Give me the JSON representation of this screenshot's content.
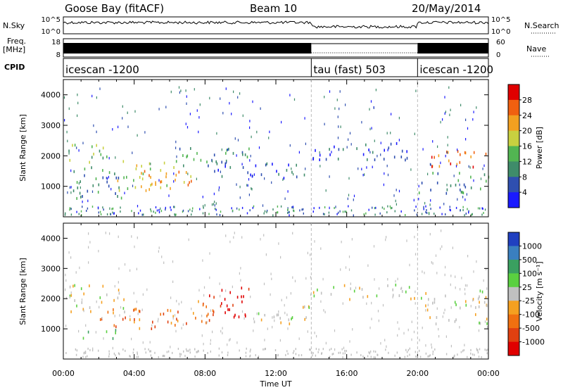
{
  "header": {
    "station": "Goose Bay (fitACF)",
    "beam": "Beam 10",
    "date": "20/May/2014"
  },
  "top_panels": {
    "nsky_label": "N.Sky",
    "nsky_ticks": [
      "10^5",
      "10^0"
    ],
    "nsearch_label": "N.Search",
    "nsearch_ticks": [
      "10^5",
      "10^0"
    ],
    "freq_label": "Freq.",
    "freq_unit": "[MHz]",
    "freq_ticks": [
      "18",
      "8"
    ],
    "nave_label": "Nave",
    "nave_ticks": [
      "60",
      "0"
    ],
    "cpid_label": "CPID",
    "cpid_segments": [
      {
        "name": "icescan -1200",
        "start": 0,
        "end": 14
      },
      {
        "name": "tau (fast) 503",
        "start": 14,
        "end": 20
      },
      {
        "name": "icescan -1200",
        "start": 20,
        "end": 24
      }
    ]
  },
  "chart_data": [
    {
      "type": "heatmap",
      "panel": "power",
      "ylabel": "Slant Range [km]",
      "xlabel": "Time UT",
      "xlim": [
        0,
        24
      ],
      "ylim": [
        0,
        4500
      ],
      "x_ticks": [
        "00:00",
        "04:00",
        "08:00",
        "12:00",
        "16:00",
        "20:00",
        "00:00"
      ],
      "y_ticks": [
        1000,
        2000,
        3000,
        4000
      ],
      "colorbar": {
        "label": "Power [dB]",
        "ticks": [
          "4",
          "8",
          "12",
          "16",
          "20",
          "24",
          "28"
        ],
        "colors": [
          "#1a1aff",
          "#2f4fb0",
          "#3f8c6a",
          "#52b552",
          "#c8d040",
          "#f2a020",
          "#f06010",
          "#e00000"
        ]
      },
      "echo_regions": [
        {
          "t0": 0.2,
          "t1": 3.0,
          "r0": 1800,
          "r1": 2400,
          "level": 3
        },
        {
          "t0": 0.5,
          "t1": 3.5,
          "r0": 600,
          "r1": 1700,
          "level": 2
        },
        {
          "t0": 2.5,
          "t1": 6.5,
          "r0": 900,
          "r1": 1900,
          "level": 4
        },
        {
          "t0": 4.5,
          "t1": 7.5,
          "r0": 1000,
          "r1": 1600,
          "level": 5
        },
        {
          "t0": 6.5,
          "t1": 10.5,
          "r0": 1500,
          "r1": 2300,
          "level": 2
        },
        {
          "t0": 8.5,
          "t1": 14.0,
          "r0": 1300,
          "r1": 1800,
          "level": 1
        },
        {
          "t0": 14.0,
          "t1": 20.0,
          "r0": 1900,
          "r1": 2500,
          "level": 1
        },
        {
          "t0": 20.0,
          "t1": 24.0,
          "r0": 1600,
          "r1": 2200,
          "level": 6
        },
        {
          "t0": 20.0,
          "t1": 24.0,
          "r0": 800,
          "r1": 1500,
          "level": 2
        }
      ]
    },
    {
      "type": "heatmap",
      "panel": "velocity",
      "ylabel": "Slant Range [km]",
      "xlabel": "Time UT",
      "xlim": [
        0,
        24
      ],
      "ylim": [
        0,
        4500
      ],
      "x_ticks": [
        "00:00",
        "04:00",
        "08:00",
        "12:00",
        "16:00",
        "20:00",
        "00:00"
      ],
      "y_ticks": [
        1000,
        2000,
        3000,
        4000
      ],
      "colorbar": {
        "label": "Velocity [m s⁻¹]",
        "ticks": [
          "1000",
          "500",
          "100",
          "25",
          "-25",
          "-100",
          "-500",
          "-1000"
        ],
        "colors": [
          "#2040c0",
          "#3a7fbf",
          "#3aa060",
          "#5ad040",
          "#c0c0c0",
          "#f5a020",
          "#f07010",
          "#e04010",
          "#e00000"
        ]
      },
      "echo_regions": [
        {
          "t0": 0.2,
          "t1": 3.5,
          "r0": 1600,
          "r1": 2500,
          "level": 4
        },
        {
          "t0": 0.8,
          "t1": 3.0,
          "r0": 700,
          "r1": 1000,
          "level": 3
        },
        {
          "t0": 1.5,
          "t1": 6.5,
          "r0": 1000,
          "r1": 1700,
          "level": 6
        },
        {
          "t0": 5.5,
          "t1": 8.5,
          "r0": 1200,
          "r1": 2000,
          "level": 6
        },
        {
          "t0": 8.0,
          "t1": 10.5,
          "r0": 1400,
          "r1": 2500,
          "level": 8
        },
        {
          "t0": 10.5,
          "t1": 14.0,
          "r0": 1200,
          "r1": 1800,
          "level": 4
        },
        {
          "t0": 14.0,
          "t1": 20.0,
          "r0": 2000,
          "r1": 2500,
          "level": 4
        },
        {
          "t0": 20.0,
          "t1": 24.0,
          "r0": 1200,
          "r1": 2300,
          "level": 4
        }
      ]
    }
  ]
}
